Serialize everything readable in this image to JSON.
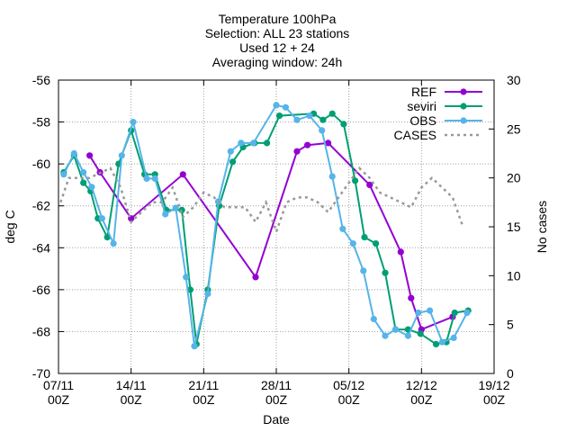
{
  "chart_data": {
    "type": "line",
    "title_lines": [
      "Temperature 100hPa",
      "Selection: ALL     23 stations",
      "Used 12 + 24",
      "Averaging window: 24h"
    ],
    "xlabel": "Date",
    "ylabel": "deg C",
    "y2label": "No cases",
    "xlim_days": [
      0,
      42
    ],
    "ylim": [
      -70,
      -56
    ],
    "y2lim": [
      0,
      30
    ],
    "grid": true,
    "legend_position": "top-right",
    "x_ticks": [
      {
        "day": 0,
        "line1": "07/11",
        "line2": "00Z"
      },
      {
        "day": 7,
        "line1": "14/11",
        "line2": "00Z"
      },
      {
        "day": 14,
        "line1": "21/11",
        "line2": "00Z"
      },
      {
        "day": 21,
        "line1": "28/11",
        "line2": "00Z"
      },
      {
        "day": 28,
        "line1": "05/12",
        "line2": "00Z"
      },
      {
        "day": 35,
        "line1": "12/12",
        "line2": "00Z"
      },
      {
        "day": 42,
        "line1": "19/12",
        "line2": "00Z"
      }
    ],
    "y_ticks": [
      "-56",
      "-58",
      "-60",
      "-62",
      "-64",
      "-66",
      "-68",
      "-70"
    ],
    "y2_ticks": [
      "30",
      "25",
      "20",
      "15",
      "10",
      "5",
      "0"
    ],
    "series": [
      {
        "name": "REF",
        "color": "#9400d3",
        "axis": "y1",
        "marker": "circle",
        "x": [
          3,
          4,
          7,
          12,
          19,
          23,
          24,
          26,
          30,
          33,
          34,
          35,
          38
        ],
        "y": [
          -59.6,
          -60.4,
          -62.6,
          -60.5,
          -65.4,
          -59.4,
          -59.1,
          -59.0,
          -61.0,
          -64.2,
          -66.4,
          -67.9,
          -67.3
        ]
      },
      {
        "name": "seviri",
        "color": "#009e73",
        "axis": "y1",
        "marker": "circle",
        "x": [
          0.5,
          1.5,
          2.4,
          3.1,
          3.8,
          4.7,
          5.8,
          7.0,
          8.3,
          9.3,
          10.4,
          11.9,
          12.7,
          13.3,
          14.4,
          15.5,
          16.8,
          17.8,
          18.9,
          20.1,
          21.3,
          24.6,
          25.5,
          26.4,
          27.5,
          28.6,
          29.5,
          30.6,
          31.5,
          32.5,
          33.7,
          34.9,
          36.4,
          37.4,
          38.2,
          39.5
        ],
        "y": [
          -60.4,
          -59.6,
          -60.9,
          -61.3,
          -62.6,
          -63.5,
          -60.0,
          -58.4,
          -60.5,
          -60.5,
          -62.2,
          -62.2,
          -66.0,
          -68.6,
          -66.0,
          -62.0,
          -59.9,
          -59.2,
          -59.0,
          -59.0,
          -57.7,
          -57.6,
          -57.9,
          -57.6,
          -58.1,
          -60.8,
          -63.5,
          -63.8,
          -65.2,
          -67.9,
          -67.9,
          -68.1,
          -68.6,
          -68.5,
          -67.1,
          -67.0
        ]
      },
      {
        "name": "OBS",
        "color": "#56b4e9",
        "axis": "y1",
        "marker": "circle",
        "x": [
          0.5,
          1.5,
          2.4,
          3.2,
          4.2,
          5.3,
          6.1,
          7.2,
          8.5,
          9.3,
          10.3,
          11.3,
          12.3,
          13.1,
          14.4,
          15.4,
          16.6,
          17.6,
          18.8,
          21.0,
          21.9,
          23.0,
          24.2,
          25.4,
          26.4,
          27.4,
          28.4,
          29.4,
          30.4,
          31.5,
          32.5,
          33.7,
          34.7,
          35.8,
          37.0,
          38.1,
          39.4
        ],
        "y": [
          -60.5,
          -59.5,
          -60.4,
          -61.1,
          -62.6,
          -63.8,
          -59.6,
          -58.0,
          -60.7,
          -60.7,
          -62.4,
          -62.1,
          -65.4,
          -68.7,
          -66.2,
          -61.8,
          -59.4,
          -59.0,
          -59.0,
          -57.2,
          -57.3,
          -57.9,
          -57.7,
          -58.4,
          -60.6,
          -63.1,
          -63.8,
          -65.1,
          -67.4,
          -68.2,
          -67.9,
          -68.2,
          -67.1,
          -67.0,
          -68.5,
          -68.3,
          -67.1
        ]
      },
      {
        "name": "CASES",
        "color": "#999999",
        "axis": "y2",
        "dashed": true,
        "x": [
          0.2,
          1.0,
          2.0,
          3.0,
          4.0,
          5.0,
          6.0,
          7.0,
          8.0,
          9.0,
          10.0,
          11.0,
          12.0,
          13.0,
          14.0,
          15.0,
          16.0,
          17.0,
          18.0,
          19.0,
          20.0,
          21.0,
          22.0,
          23.0,
          24.0,
          25.0,
          26.0,
          27.0,
          28.0,
          29.0,
          30.0,
          31.0,
          32.0,
          33.0,
          34.0,
          35.0,
          36.0,
          37.0,
          38.0,
          39.0
        ],
        "y": [
          17.5,
          20,
          20,
          20,
          20.5,
          21,
          19,
          15.5,
          16.5,
          17.5,
          17.5,
          19,
          16,
          17,
          18.5,
          18,
          17,
          17,
          17,
          15.5,
          17.5,
          14.5,
          17.5,
          18,
          18,
          17.5,
          16.5,
          18,
          19.5,
          21,
          20,
          18.5,
          18,
          17.5,
          17,
          19,
          20,
          19,
          18,
          15
        ]
      }
    ]
  }
}
